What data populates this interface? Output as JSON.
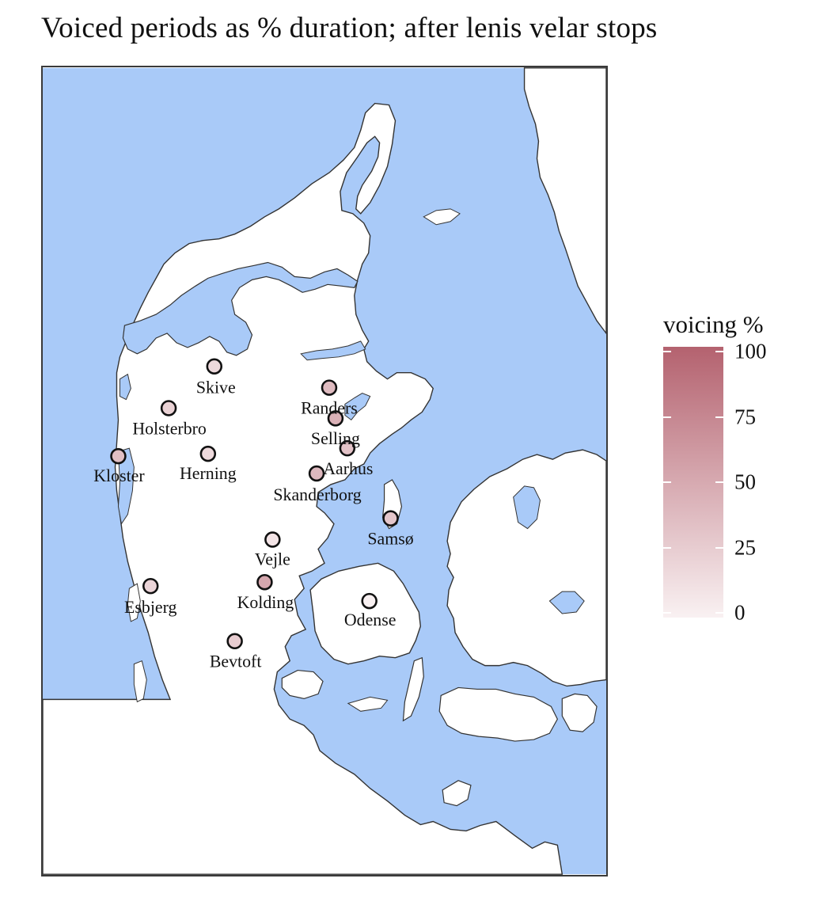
{
  "title": "Voiced periods as % duration; after lenis velar stops",
  "colors": {
    "sea": "#a9caf8",
    "land": "#ffffff",
    "coast": "#333333",
    "scale_high": "#b4626f",
    "scale_low": "#f9f1f2",
    "frame": "#3a3a3a"
  },
  "legend": {
    "title": "voicing %",
    "breaks": [
      {
        "value": 100,
        "label": "100"
      },
      {
        "value": 75,
        "label": "75"
      },
      {
        "value": 50,
        "label": "50"
      },
      {
        "value": 25,
        "label": "25"
      },
      {
        "value": 0,
        "label": "0"
      }
    ]
  },
  "locations": [
    {
      "name": "Skive",
      "voicing": 17
    },
    {
      "name": "Randers",
      "voicing": 38
    },
    {
      "name": "Holsterbro",
      "voicing": 22
    },
    {
      "name": "Selling",
      "voicing": 45
    },
    {
      "name": "Kloster",
      "voicing": 35
    },
    {
      "name": "Herning",
      "voicing": 16
    },
    {
      "name": "Aarhus",
      "voicing": 32
    },
    {
      "name": "Skanderborg",
      "voicing": 40
    },
    {
      "name": "Samsø",
      "voicing": 30
    },
    {
      "name": "Vejle",
      "voicing": 9
    },
    {
      "name": "Esbjerg",
      "voicing": 20
    },
    {
      "name": "Kolding",
      "voicing": 52
    },
    {
      "name": "Odense",
      "voicing": 0
    },
    {
      "name": "Bevtoft",
      "voicing": 25
    }
  ]
}
